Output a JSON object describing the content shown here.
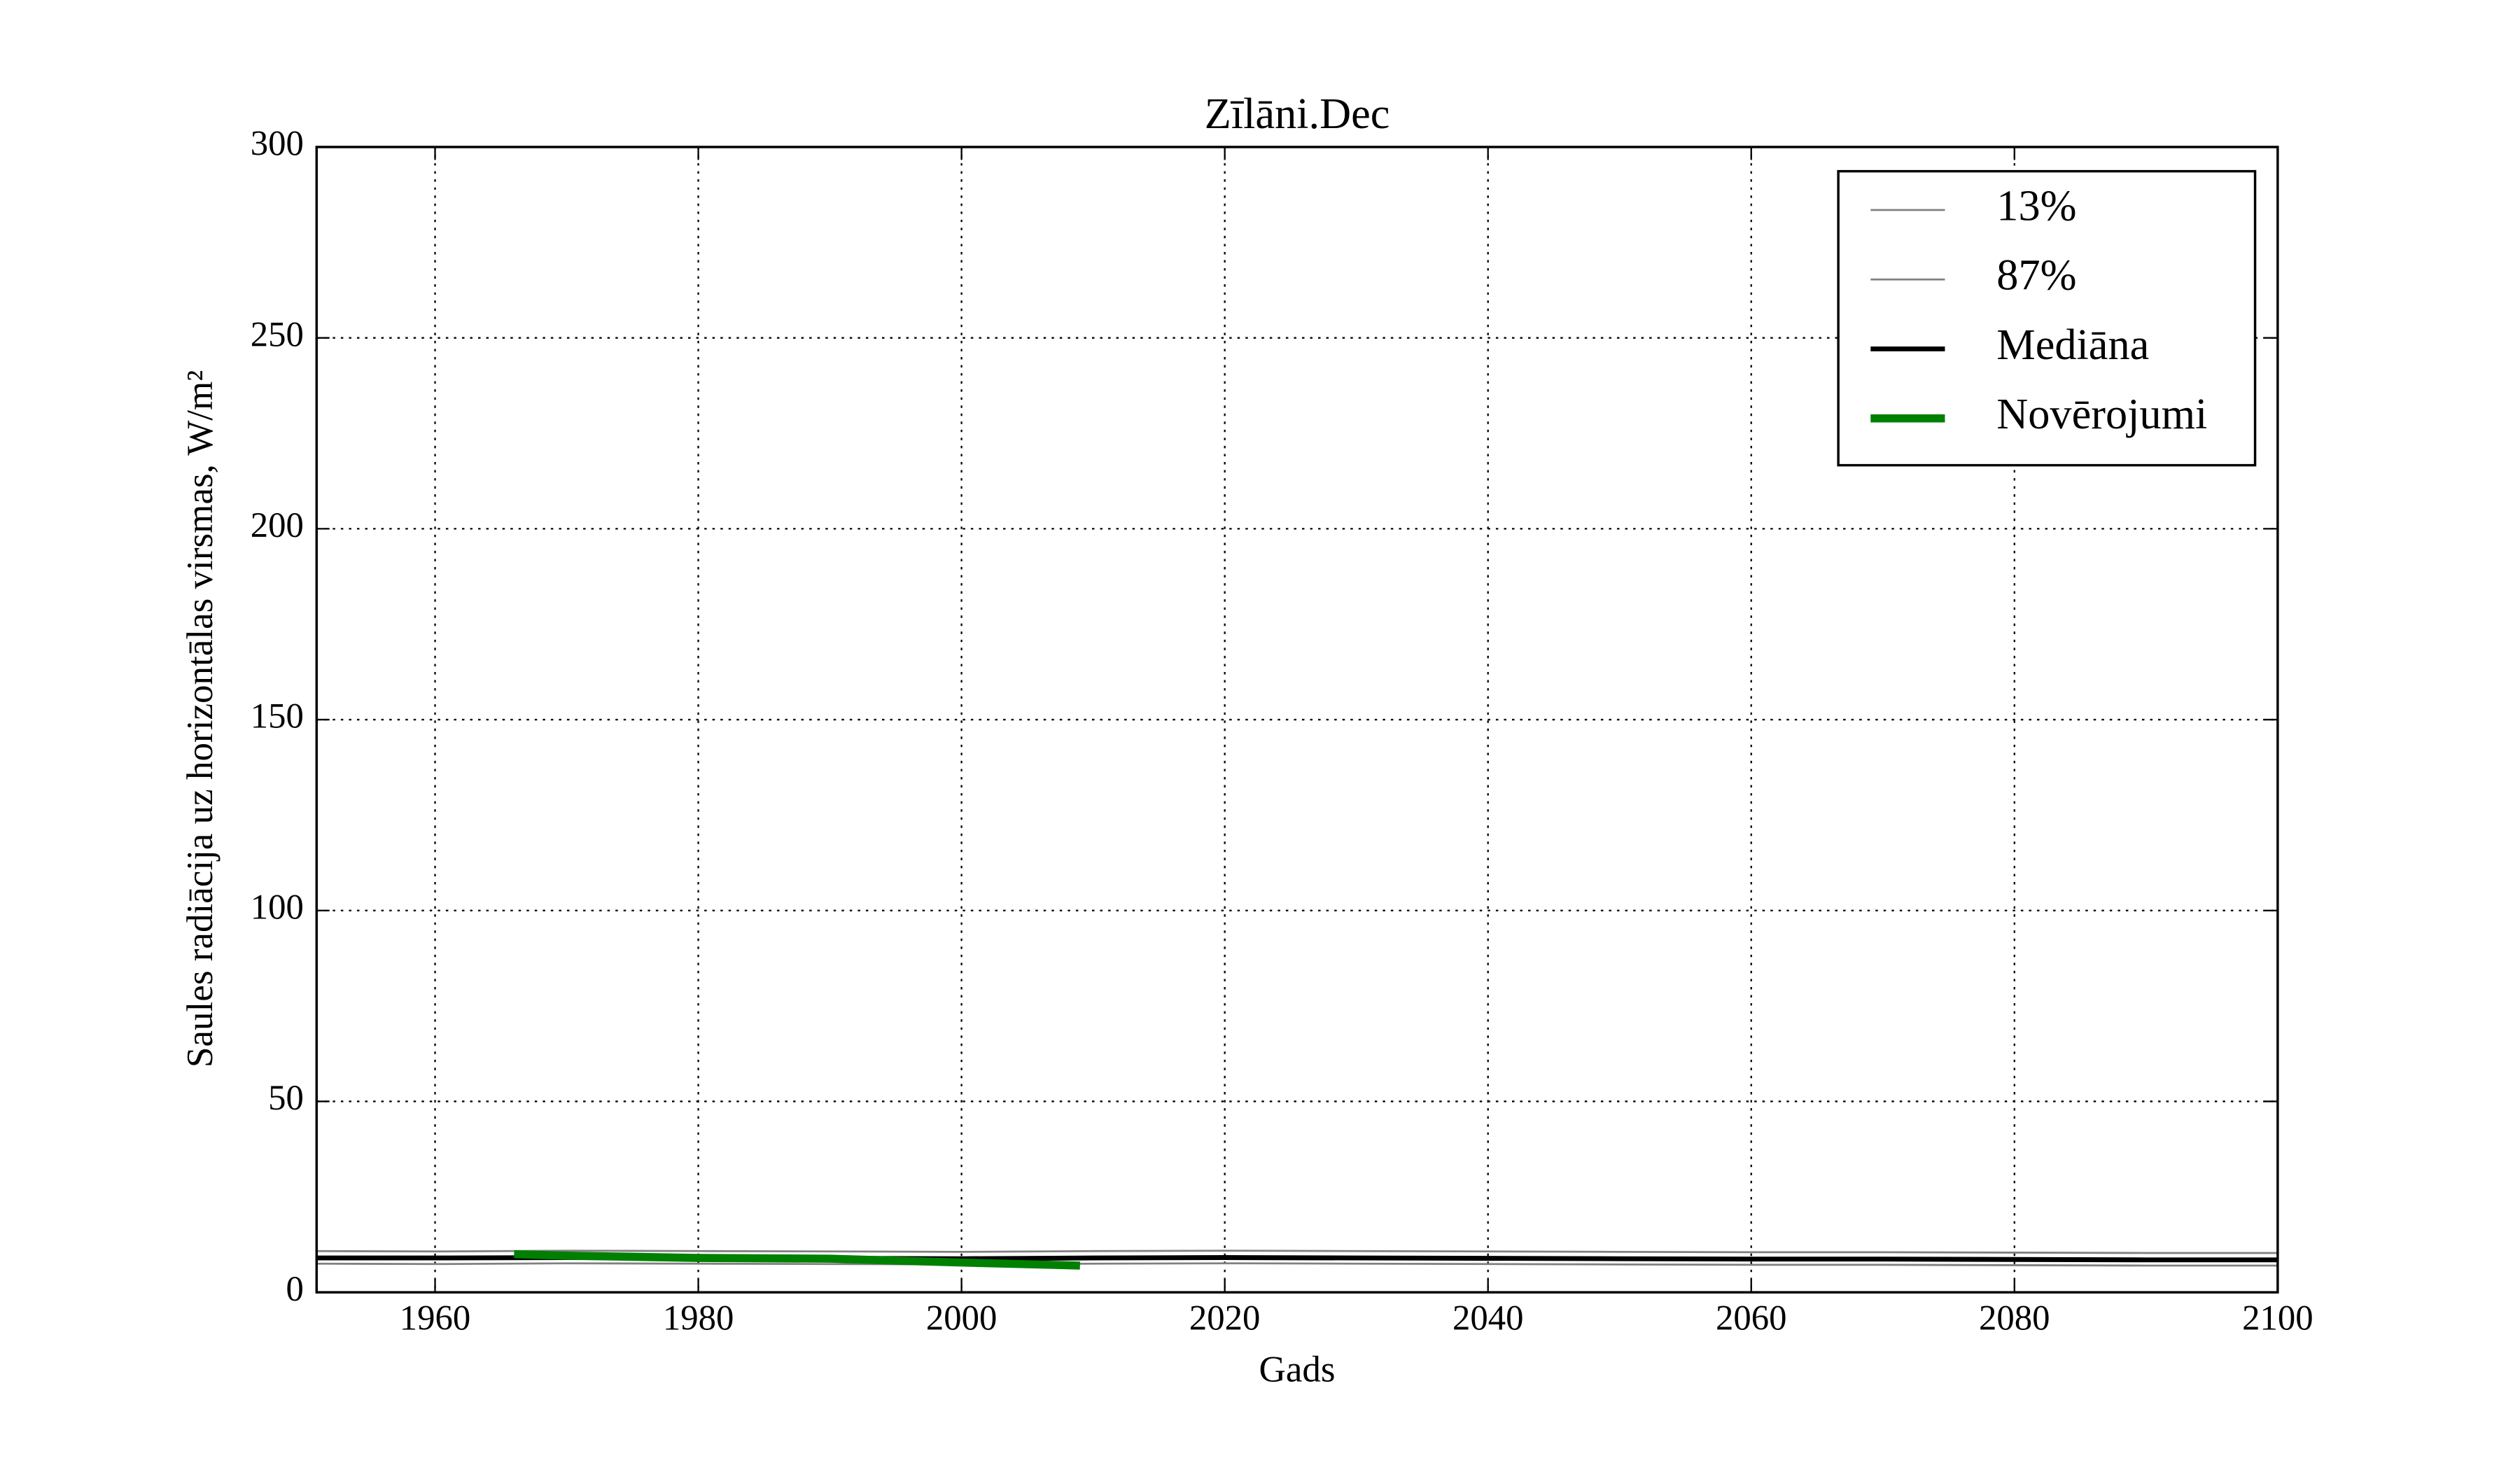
{
  "chart_data": {
    "type": "line",
    "title": "Zīlāni.Dec",
    "x_label": "Gads",
    "y_label": "Saules radiācija uz horizontālas virsmas, W/m²",
    "x": [
      1951,
      1960,
      1970,
      1980,
      1990,
      2000,
      2010,
      2020,
      2030,
      2040,
      2050,
      2060,
      2070,
      2080,
      2090,
      2100
    ],
    "series": [
      {
        "name": "13%",
        "color": "#808080",
        "values": [
          7.5,
          7.4,
          7.6,
          7.5,
          7.4,
          7.3,
          7.5,
          7.6,
          7.5,
          7.4,
          7.3,
          7.2,
          7.2,
          7.1,
          7.0,
          7.0
        ]
      },
      {
        "name": "87%",
        "color": "#808080",
        "values": [
          10.8,
          10.7,
          10.9,
          10.8,
          10.7,
          10.6,
          10.8,
          10.9,
          10.8,
          10.7,
          10.6,
          10.5,
          10.5,
          10.4,
          10.3,
          10.3
        ]
      },
      {
        "name": "Mediāna",
        "color": "#000000",
        "values": [
          9.0,
          9.0,
          9.1,
          9.0,
          8.9,
          8.8,
          9.0,
          9.1,
          9.0,
          8.9,
          8.8,
          8.7,
          8.7,
          8.6,
          8.5,
          8.5
        ]
      },
      {
        "name": "Novērojumi",
        "color": "#008000",
        "x": [
          1966,
          1970,
          1980,
          1990,
          2000,
          2009
        ],
        "values": [
          10.0,
          9.6,
          9.0,
          8.8,
          7.8,
          7.0
        ]
      }
    ],
    "xlim": [
      1951,
      2100
    ],
    "xticks": [
      1960,
      1980,
      2000,
      2020,
      2040,
      2060,
      2080,
      2100
    ],
    "ylim": [
      0,
      300
    ],
    "yticks": [
      0,
      50,
      100,
      150,
      200,
      250,
      300
    ],
    "grid": true,
    "legend": "upper right"
  }
}
